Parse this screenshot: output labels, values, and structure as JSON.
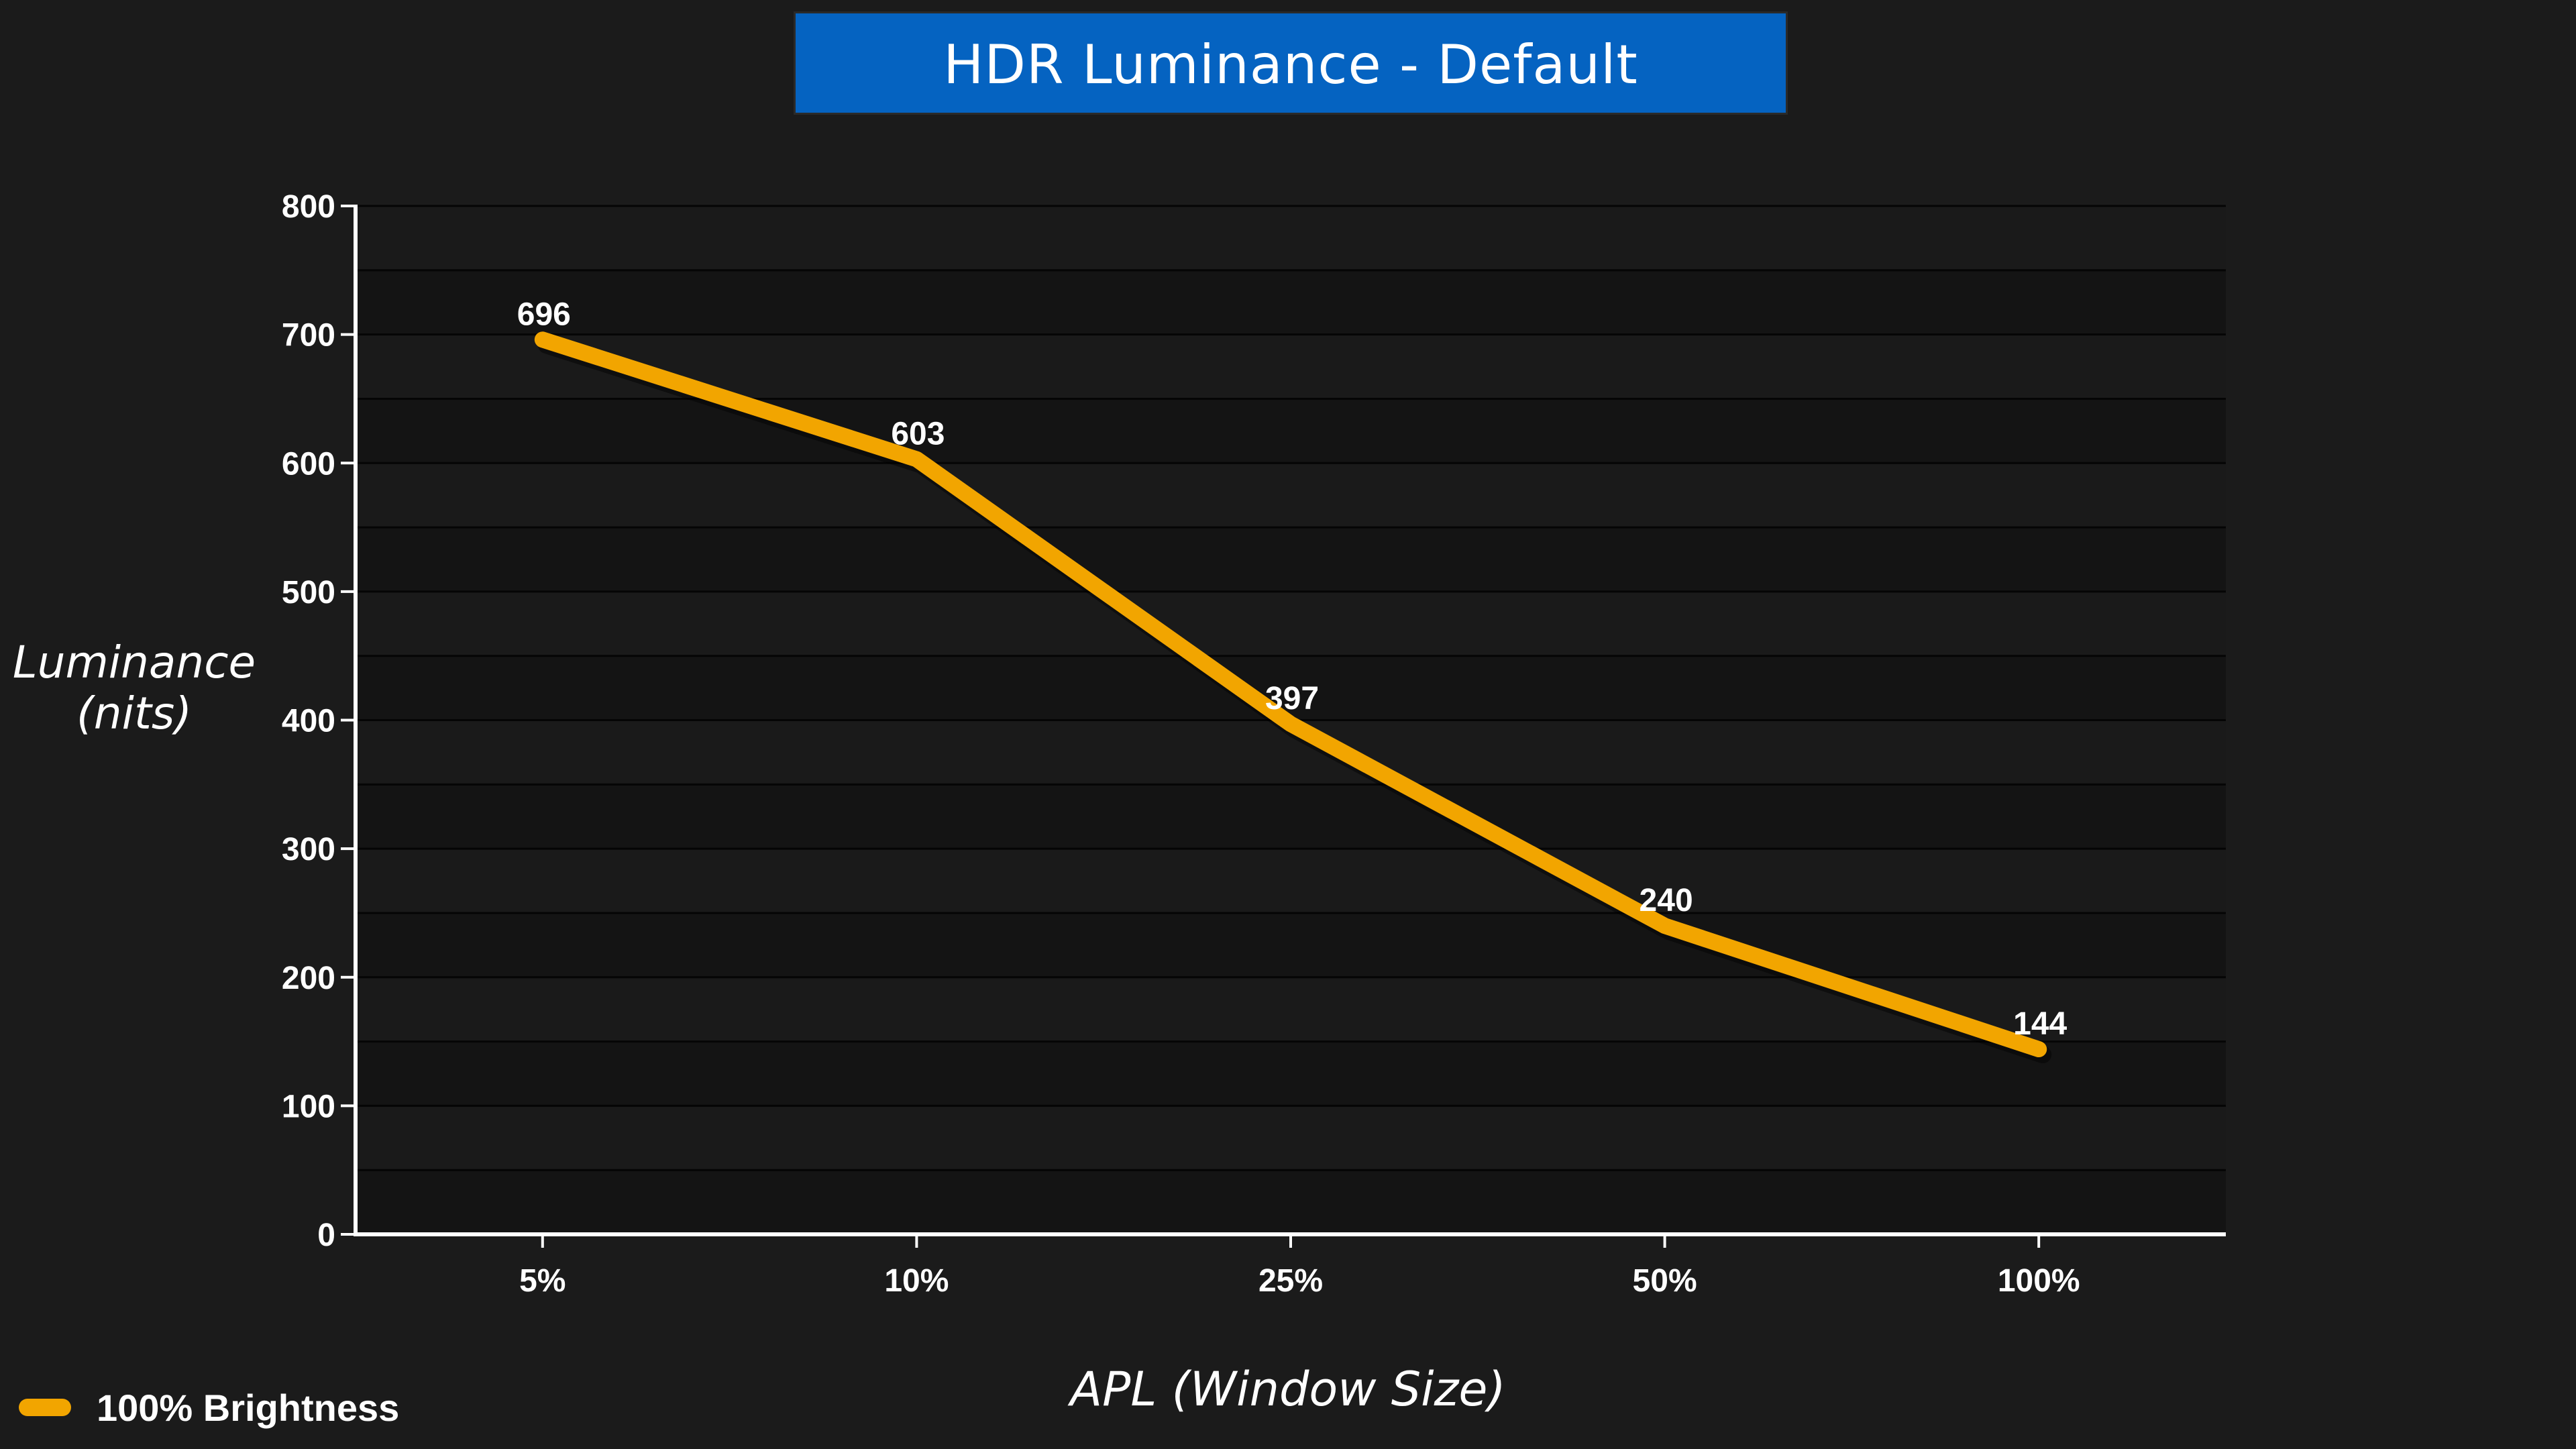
{
  "chart_data": {
    "type": "line",
    "title": "HDR Luminance - Default",
    "xlabel": "APL (Window Size)",
    "ylabel_lines": [
      "Luminance",
      "(nits)"
    ],
    "categories": [
      "5%",
      "10%",
      "25%",
      "50%",
      "100%"
    ],
    "series": [
      {
        "name": "100% Brightness",
        "values": [
          696,
          603,
          397,
          240,
          144
        ],
        "color": "#f2a500"
      }
    ],
    "ylim": [
      0,
      800
    ],
    "yticks": [
      0,
      100,
      200,
      300,
      400,
      500,
      600,
      700,
      800
    ],
    "grid": true,
    "legend_position": "bottom-left"
  }
}
